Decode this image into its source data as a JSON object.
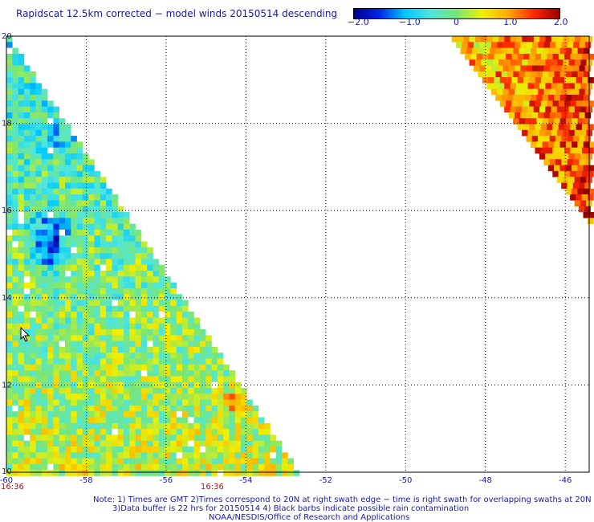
{
  "title": "Rapidscat 12.5km corrected − model winds 20150514 descending",
  "colorbar": {
    "ticks": [
      "−2.0",
      "−1.0",
      "0",
      "1.0",
      "2.0"
    ],
    "min": -2.0,
    "max": 2.0
  },
  "map": {
    "lon_ticks": [
      "-60",
      "-58",
      "-56",
      "-54",
      "-52",
      "-50",
      "-48",
      "-46"
    ],
    "lat_ticks": [
      "20",
      "18",
      "16",
      "14",
      "12",
      "10"
    ],
    "lon_range": [
      -60,
      -45.4
    ],
    "lat_range": [
      10,
      20
    ],
    "time_labels": [
      "16:36",
      "16:36"
    ],
    "time_label_color": "#8b1a1a"
  },
  "footer": {
    "line1": "Note: 1) Times are GMT 2)Times correspond to 20N at right swath edge − time is right swath for overlapping swaths at 20N",
    "line2": "3)Data buffer is 22 hrs for 20150514 4) Black barbs indicate possible rain contamination",
    "line3": "NOAA/NESDIS/Office of Research and Applications"
  }
}
